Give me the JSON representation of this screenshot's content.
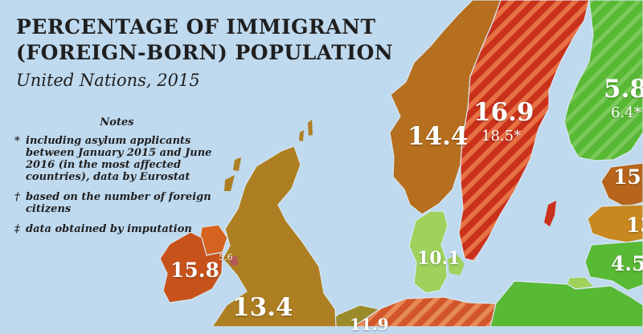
{
  "title": {
    "line1": "PERCENTAGE OF IMMIGRANT",
    "line2": "(FOREIGN-BORN) POPULATION",
    "subtitle": "United Nations, 2015"
  },
  "notes": {
    "title": "Notes",
    "items": [
      {
        "symbol": "*",
        "text": "including asylum applicants between January 2015 and June 2016 (in the most affected countries), data by Eurostat"
      },
      {
        "symbol": "†",
        "text": "based on the number of foreign citizens"
      },
      {
        "symbol": "‡",
        "text": "data obtained by imputation"
      }
    ]
  },
  "labels": {
    "norway": "14.4",
    "sweden": "16.9",
    "sweden_asylum": "18.5*",
    "finland": "5.8",
    "finland_asylum": "6.4*",
    "denmark": "10.1",
    "ireland": "15.8",
    "northern_ireland": "5.6",
    "uk": "13.4",
    "estonia_partial": "15.",
    "latvia_partial": "13",
    "lithuania_partial": "4.5",
    "bottom_partial": "11.9"
  },
  "colors": {
    "sea": "#bfd9ee",
    "brown": "#b56f1f",
    "orange_brown": "#b7651c",
    "red": "#c9311b",
    "stripe": "#e77145",
    "green_bright": "#58b935",
    "green_light": "#9fd15c",
    "uk": "#ae7f22",
    "ireland": "#c8521b",
    "ireland_north": "#d5631f"
  }
}
